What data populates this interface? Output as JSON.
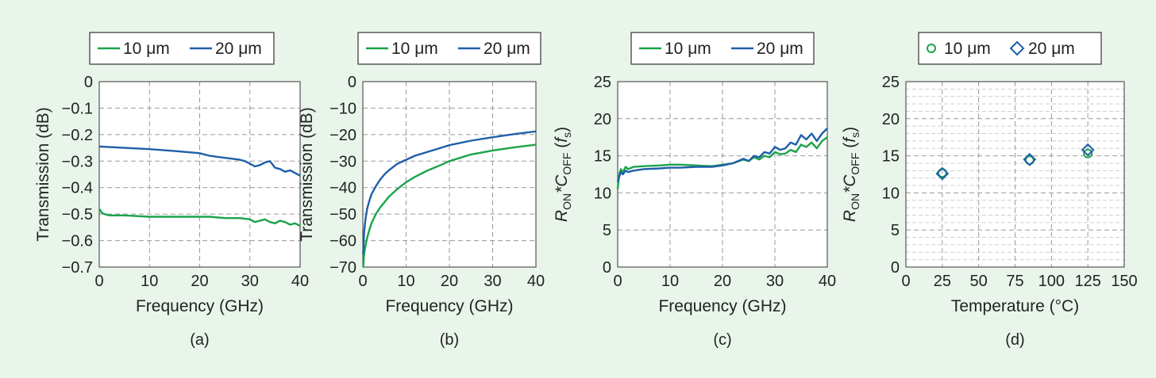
{
  "colors": {
    "green": "#1aa34a",
    "blue": "#1f5fa8",
    "grid": "#9a9a9a",
    "axis": "#555555",
    "background": "#e9f5ea"
  },
  "chart_data": [
    {
      "id": "a",
      "type": "line",
      "caption": "(a)",
      "xlabel": "Frequency (GHz)",
      "ylabel": "Transmission (dB)",
      "xlim": [
        0,
        40
      ],
      "ylim": [
        -0.7,
        0
      ],
      "xticks": [
        0,
        10,
        20,
        30,
        40
      ],
      "yticks": [
        0,
        -0.1,
        -0.2,
        -0.3,
        -0.4,
        -0.5,
        -0.6,
        -0.7
      ],
      "xtick_labels": [
        "0",
        "10",
        "20",
        "30",
        "40"
      ],
      "ytick_labels": [
        "0",
        "−0.1",
        "−0.2",
        "−0.3",
        "−0.4",
        "−0.5",
        "−0.6",
        "−0.7"
      ],
      "grid": true,
      "legend": "top",
      "series": [
        {
          "name": "10 μm",
          "color": "green",
          "x": [
            0,
            0.5,
            1,
            2,
            5,
            10,
            15,
            20,
            22,
            25,
            28,
            30,
            31,
            32,
            33,
            34,
            35,
            36,
            37,
            38,
            39,
            40
          ],
          "y": [
            -0.48,
            -0.495,
            -0.5,
            -0.505,
            -0.505,
            -0.51,
            -0.51,
            -0.51,
            -0.51,
            -0.515,
            -0.515,
            -0.52,
            -0.53,
            -0.525,
            -0.52,
            -0.53,
            -0.535,
            -0.525,
            -0.53,
            -0.54,
            -0.535,
            -0.545
          ]
        },
        {
          "name": "20 μm",
          "color": "blue",
          "x": [
            0,
            5,
            10,
            15,
            20,
            22,
            24,
            26,
            28,
            29,
            30,
            31,
            32,
            33,
            34,
            35,
            36,
            37,
            38,
            39,
            40
          ],
          "y": [
            -0.245,
            -0.25,
            -0.255,
            -0.262,
            -0.27,
            -0.28,
            -0.285,
            -0.29,
            -0.295,
            -0.3,
            -0.31,
            -0.32,
            -0.315,
            -0.305,
            -0.3,
            -0.325,
            -0.33,
            -0.34,
            -0.335,
            -0.345,
            -0.355
          ]
        }
      ]
    },
    {
      "id": "b",
      "type": "line",
      "caption": "(b)",
      "xlabel": "Frequency (GHz)",
      "ylabel": "Transmission (dB)",
      "xlim": [
        0,
        40
      ],
      "ylim": [
        -70,
        0
      ],
      "xticks": [
        0,
        10,
        20,
        30,
        40
      ],
      "yticks": [
        0,
        -10,
        -20,
        -30,
        -40,
        -50,
        -60,
        -70
      ],
      "xtick_labels": [
        "0",
        "10",
        "20",
        "30",
        "40"
      ],
      "ytick_labels": [
        "0",
        "−10",
        "−20",
        "−30",
        "−40",
        "−50",
        "−60",
        "−70"
      ],
      "grid": true,
      "legend": "top",
      "series": [
        {
          "name": "10 μm",
          "color": "green",
          "x": [
            0.1,
            0.3,
            0.6,
            1,
            1.5,
            2,
            3,
            4,
            5,
            6,
            8,
            10,
            12,
            15,
            18,
            20,
            25,
            30,
            35,
            40
          ],
          "y": [
            -70,
            -65,
            -62,
            -59,
            -56,
            -53.5,
            -50,
            -47.5,
            -45.5,
            -43.5,
            -40.5,
            -38,
            -36,
            -33.5,
            -31.5,
            -30,
            -27.5,
            -26,
            -24.8,
            -23.8
          ]
        },
        {
          "name": "20 μm",
          "color": "blue",
          "x": [
            0.1,
            0.3,
            0.6,
            1,
            1.5,
            2,
            3,
            4,
            5,
            6,
            8,
            10,
            12,
            15,
            18,
            20,
            25,
            30,
            35,
            40
          ],
          "y": [
            -65,
            -57,
            -52,
            -48,
            -45,
            -42.5,
            -39.5,
            -37,
            -35,
            -33.5,
            -31,
            -29.5,
            -28,
            -26.5,
            -25,
            -24,
            -22.3,
            -21,
            -19.8,
            -18.8
          ]
        }
      ]
    },
    {
      "id": "c",
      "type": "line",
      "caption": "(c)",
      "xlabel": "Frequency (GHz)",
      "ylabel_parts": [
        "R",
        "ON",
        "*C",
        "OFF",
        " (",
        "f",
        "s",
        ")"
      ],
      "xlim": [
        0,
        40
      ],
      "ylim": [
        0,
        25
      ],
      "xticks": [
        0,
        10,
        20,
        30,
        40
      ],
      "yticks": [
        0,
        5,
        10,
        15,
        20,
        25
      ],
      "xtick_labels": [
        "0",
        "10",
        "20",
        "30",
        "40"
      ],
      "ytick_labels": [
        "0",
        "5",
        "10",
        "15",
        "20",
        "25"
      ],
      "grid": true,
      "legend": "top",
      "series": [
        {
          "name": "10 μm",
          "color": "green",
          "x": [
            0,
            0.3,
            0.6,
            1,
            1.5,
            2,
            3,
            5,
            8,
            10,
            12,
            15,
            18,
            20,
            22,
            24,
            25,
            26,
            27,
            28,
            29,
            30,
            31,
            32,
            33,
            34,
            35,
            36,
            37,
            38,
            39,
            40
          ],
          "y": [
            10.5,
            12.5,
            13.2,
            12.8,
            13.5,
            13.2,
            13.5,
            13.6,
            13.7,
            13.8,
            13.8,
            13.7,
            13.6,
            13.8,
            14,
            14.5,
            14.3,
            14.8,
            14.5,
            15,
            14.8,
            15.5,
            15.2,
            15.3,
            15.8,
            15.5,
            16.5,
            16.2,
            16.8,
            16,
            17,
            17.5
          ]
        },
        {
          "name": "20 μm",
          "color": "blue",
          "x": [
            0,
            0.3,
            0.6,
            1,
            1.5,
            2,
            3,
            5,
            8,
            10,
            12,
            15,
            18,
            20,
            22,
            24,
            25,
            26,
            27,
            28,
            29,
            30,
            31,
            32,
            33,
            34,
            35,
            36,
            37,
            38,
            39,
            40
          ],
          "y": [
            11.5,
            12.2,
            12.8,
            12.5,
            13,
            12.8,
            13,
            13.2,
            13.3,
            13.4,
            13.4,
            13.5,
            13.5,
            13.7,
            14,
            14.6,
            14.3,
            15,
            14.8,
            15.5,
            15.3,
            16.2,
            15.8,
            16,
            16.8,
            16.5,
            17.8,
            17.2,
            18,
            17,
            18,
            18.7
          ]
        }
      ]
    },
    {
      "id": "d",
      "type": "scatter",
      "caption": "(d)",
      "xlabel": "Temperature (°C)",
      "ylabel_parts": [
        "R",
        "ON",
        "*C",
        "OFF",
        " (",
        "f",
        "s",
        ")"
      ],
      "xlim": [
        0,
        150
      ],
      "ylim": [
        0,
        25
      ],
      "xticks": [
        0,
        25,
        50,
        75,
        100,
        125,
        150
      ],
      "yticks": [
        0,
        5,
        10,
        15,
        20,
        25
      ],
      "xtick_labels": [
        "0",
        "25",
        "50",
        "75",
        "100",
        "125",
        "150"
      ],
      "ytick_labels": [
        "0",
        "5",
        "10",
        "15",
        "20",
        "25"
      ],
      "grid": true,
      "minor_grid": true,
      "legend": "top",
      "series": [
        {
          "name": "10 μm",
          "color": "green",
          "marker": "circle",
          "x": [
            25,
            85,
            125
          ],
          "y": [
            12.7,
            14.4,
            15.3
          ]
        },
        {
          "name": "20 μm",
          "color": "blue",
          "marker": "diamond",
          "x": [
            25,
            85,
            125
          ],
          "y": [
            12.6,
            14.5,
            15.8
          ]
        }
      ]
    }
  ]
}
